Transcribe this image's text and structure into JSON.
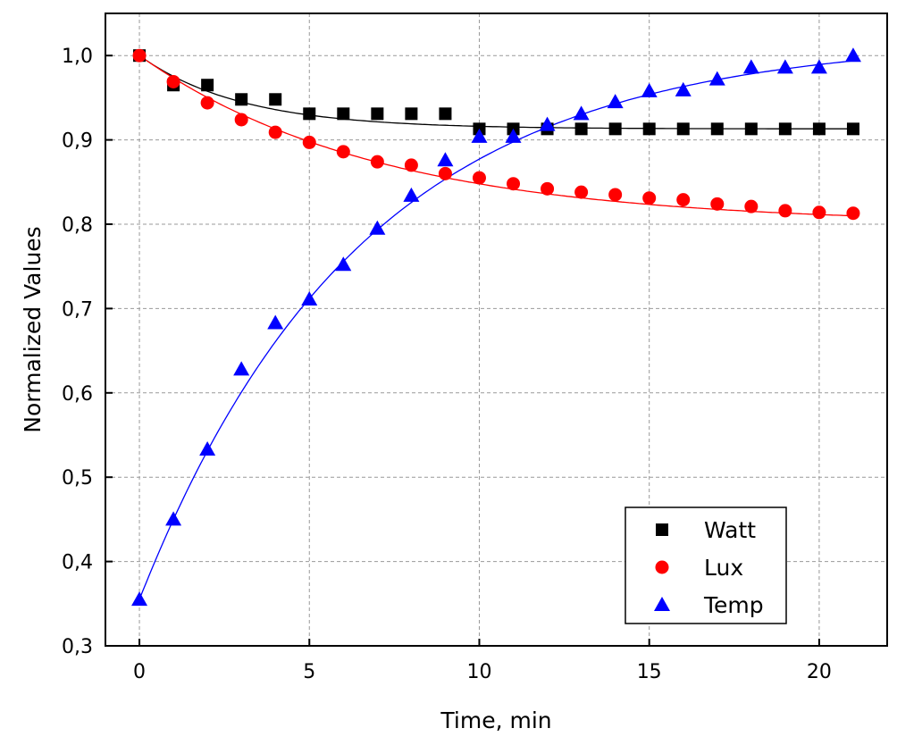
{
  "chart_data": {
    "type": "scatter",
    "title": "",
    "xlabel": "Time, min",
    "ylabel": "Normalized Values",
    "xlim": [
      -1,
      22
    ],
    "ylim": [
      0.3,
      1.05
    ],
    "xticks": [
      0,
      5,
      10,
      15,
      20
    ],
    "yticks": [
      "0,3",
      "0,4",
      "0,5",
      "0,6",
      "0,7",
      "0,8",
      "0,9",
      "1,0"
    ],
    "grid": true,
    "legend_position": "bottom-right",
    "x": [
      0,
      1,
      2,
      3,
      4,
      5,
      6,
      7,
      8,
      9,
      10,
      11,
      12,
      13,
      14,
      15,
      16,
      17,
      18,
      19,
      20,
      21
    ],
    "series": [
      {
        "name": "Watt",
        "marker": "square",
        "color": "#000000",
        "values": [
          1.0,
          0.965,
          0.965,
          0.948,
          0.948,
          0.931,
          0.931,
          0.931,
          0.931,
          0.931,
          0.913,
          0.913,
          0.913,
          0.913,
          0.913,
          0.913,
          0.913,
          0.913,
          0.913,
          0.913,
          0.913,
          0.913
        ],
        "fit": {
          "y0": 0.913,
          "A": 0.087,
          "t": 3
        }
      },
      {
        "name": "Lux",
        "marker": "circle",
        "color": "#ff0000",
        "values": [
          1.0,
          0.969,
          0.944,
          0.924,
          0.909,
          0.897,
          0.886,
          0.874,
          0.87,
          0.86,
          0.855,
          0.848,
          0.842,
          0.838,
          0.835,
          0.831,
          0.829,
          0.824,
          0.821,
          0.816,
          0.814,
          0.813
        ],
        "fit": {
          "y0": 0.8,
          "A": 0.2,
          "t": 7
        }
      },
      {
        "name": "Temp",
        "marker": "triangle",
        "color": "#0000ff",
        "values": [
          0.355,
          0.45,
          0.533,
          0.628,
          0.683,
          0.711,
          0.752,
          0.795,
          0.834,
          0.876,
          0.904,
          0.904,
          0.918,
          0.931,
          0.945,
          0.958,
          0.959,
          0.972,
          0.986,
          0.986,
          0.986,
          1.0
        ],
        "fit": {
          "y0": 1.02,
          "A": -0.665,
          "t": 6.5
        }
      }
    ]
  }
}
